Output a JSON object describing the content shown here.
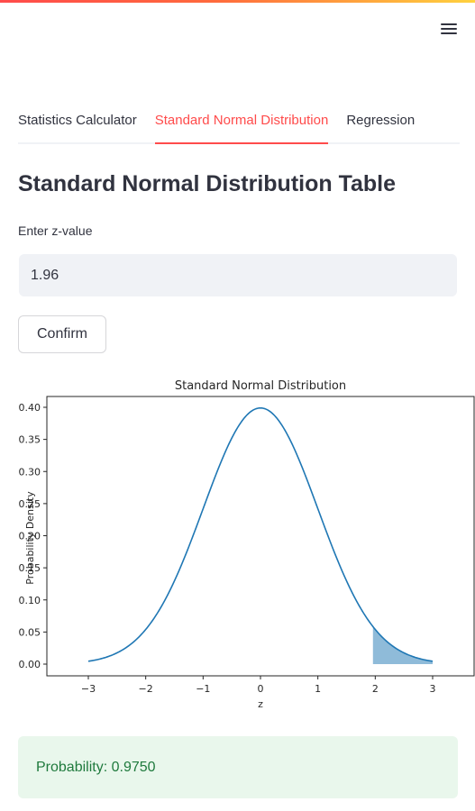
{
  "header": {
    "menu_icon": "hamburger-menu-icon"
  },
  "tabs": [
    {
      "label": "Statistics Calculator",
      "active": false
    },
    {
      "label": "Standard Normal Distribution",
      "active": true
    },
    {
      "label": "Regression",
      "active": false
    }
  ],
  "main": {
    "title": "Standard Normal Distribution Table",
    "input_label": "Enter z-value",
    "input_value": "1.96",
    "confirm_label": "Confirm",
    "result_text": "Probability: 0.9750"
  },
  "colors": {
    "accent": "#ff4b4b",
    "curve": "#1f77b4",
    "shade": "#1f77b4",
    "success_bg": "#e9f7ec",
    "success_text": "#1f7a3d"
  },
  "chart_data": {
    "type": "area",
    "title": "Standard Normal Distribution",
    "xlabel": "z",
    "ylabel": "Probability Density",
    "xlim": [
      -3,
      3
    ],
    "ylim": [
      0,
      0.4
    ],
    "xticks": [
      "−3",
      "−2",
      "−1",
      "0",
      "1",
      "2",
      "3"
    ],
    "yticks": [
      "0.00",
      "0.05",
      "0.10",
      "0.15",
      "0.20",
      "0.25",
      "0.30",
      "0.35",
      "0.40"
    ],
    "series": [
      {
        "function": "standard normal pdf",
        "mean": 0,
        "sd": 1,
        "x_range": [
          -3,
          3
        ]
      }
    ],
    "shaded_region": {
      "from": 1.96,
      "to": 3
    },
    "grid": false
  }
}
